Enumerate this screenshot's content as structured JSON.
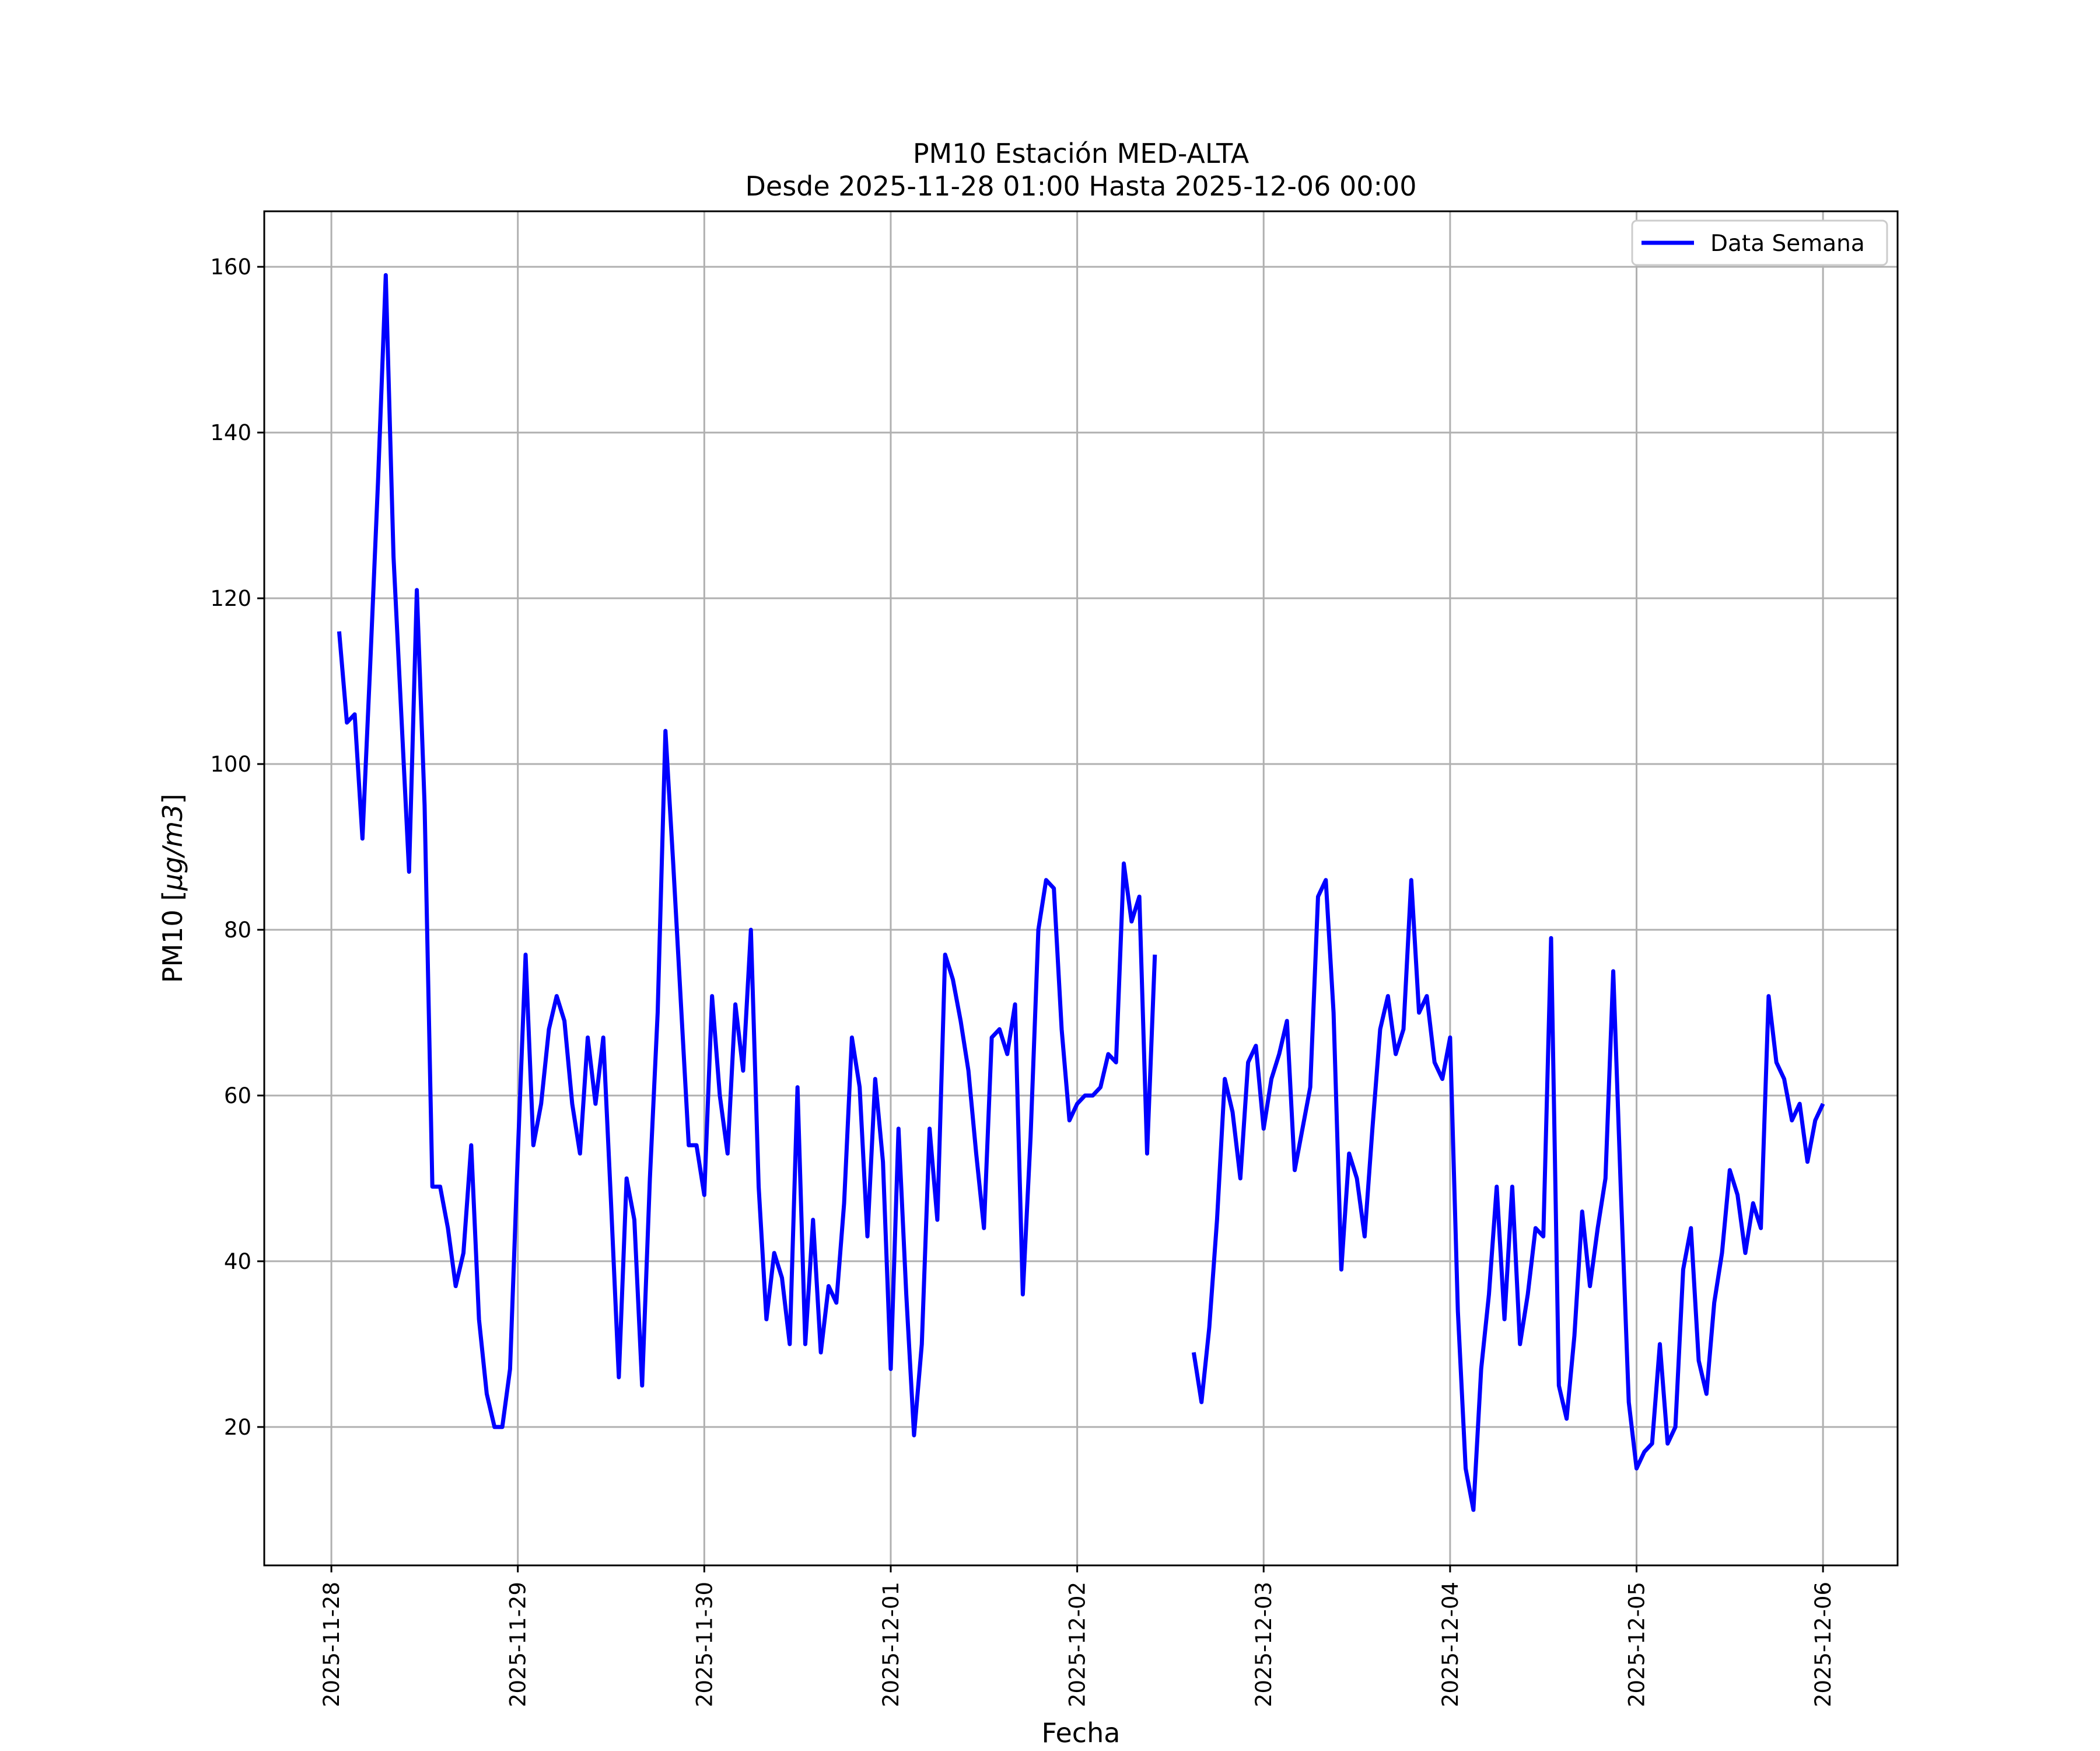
{
  "chart_data": {
    "type": "line",
    "title": "PM10 Estación MED-ALTA",
    "subtitle": "Desde 2025-11-28 01:00 Hasta 2025-12-06 00:00",
    "xlabel": "Fecha",
    "ylabel_prefix": "PM10 [",
    "ylabel_math": "μg/m3",
    "ylabel_suffix": "]",
    "grid": true,
    "legend_position": "top-right",
    "line_color": "#0000ff",
    "xlim_days": [
      -0.36,
      8.4
    ],
    "ylim": [
      3.3,
      166.7
    ],
    "y_ticks": [
      20,
      40,
      60,
      80,
      100,
      120,
      140,
      160
    ],
    "x_ticks": [
      {
        "day": 0,
        "label": "2025-11-28"
      },
      {
        "day": 1,
        "label": "2025-11-29"
      },
      {
        "day": 2,
        "label": "2025-11-30"
      },
      {
        "day": 3,
        "label": "2025-12-01"
      },
      {
        "day": 4,
        "label": "2025-12-02"
      },
      {
        "day": 5,
        "label": "2025-12-03"
      },
      {
        "day": 6,
        "label": "2025-12-04"
      },
      {
        "day": 7,
        "label": "2025-12-05"
      },
      {
        "day": 8,
        "label": "2025-12-06"
      }
    ],
    "series": [
      {
        "name": "Data Semana",
        "start": "2025-11-28 01:00",
        "step_hours": 1,
        "values": [
          116,
          105,
          106,
          91,
          112,
          134,
          159,
          125,
          106,
          87,
          121,
          95,
          49,
          49,
          44,
          37,
          41,
          54,
          33,
          24,
          20,
          20,
          27,
          53,
          77,
          54,
          59,
          68,
          72,
          69,
          59,
          53,
          67,
          59,
          67,
          47,
          26,
          50,
          45,
          25,
          50,
          70,
          104,
          88,
          71,
          54,
          54,
          48,
          72,
          60,
          53,
          71,
          63,
          80,
          49,
          33,
          41,
          38,
          30,
          61,
          30,
          45,
          29,
          37,
          35,
          47,
          67,
          61,
          43,
          62,
          52,
          27,
          56,
          36,
          19,
          30,
          56,
          45,
          77,
          74,
          69,
          63,
          53,
          44,
          67,
          68,
          65,
          71,
          36,
          55,
          80,
          86,
          85,
          68,
          57,
          59,
          60,
          60,
          61,
          65,
          64,
          88,
          81,
          84,
          53,
          77,
          null,
          null,
          null,
          null,
          29,
          23,
          32,
          45,
          62,
          58,
          50,
          64,
          66,
          56,
          62,
          65,
          69,
          51,
          56,
          61,
          84,
          86,
          70,
          39,
          53,
          50,
          43,
          56,
          68,
          72,
          65,
          68,
          86,
          70,
          72,
          64,
          62,
          67,
          34,
          15,
          10,
          27,
          36,
          49,
          33,
          49,
          30,
          36,
          44,
          43,
          79,
          25,
          21,
          31,
          46,
          37,
          44,
          50,
          75,
          48,
          23,
          15,
          17,
          18,
          30,
          18,
          20,
          39,
          44,
          28,
          24,
          35,
          41,
          51,
          48,
          41,
          47,
          44,
          72,
          64,
          62,
          57,
          59,
          52,
          57,
          59
        ]
      }
    ]
  }
}
